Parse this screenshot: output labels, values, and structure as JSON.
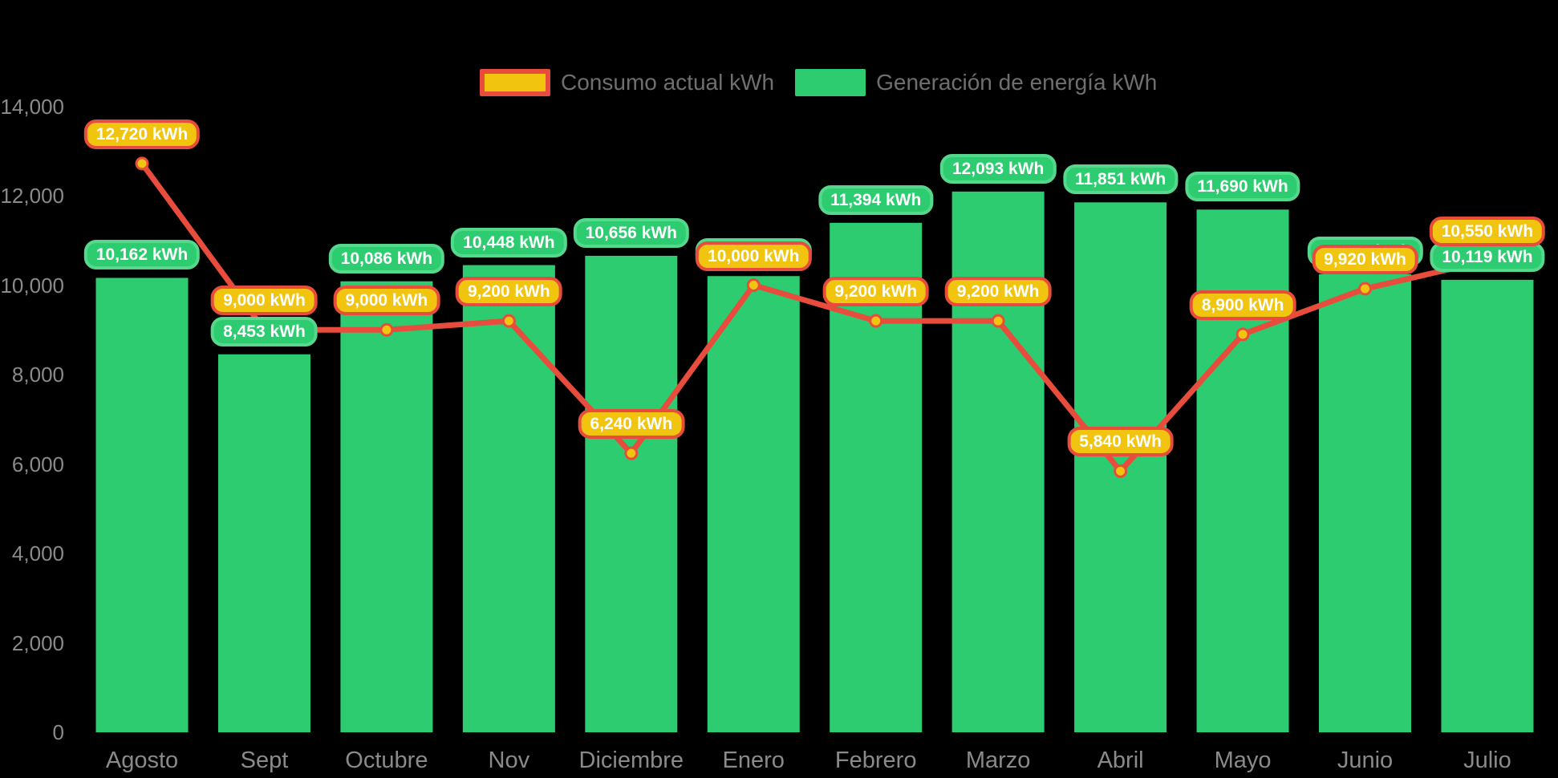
{
  "colors": {
    "background": "#000000",
    "bar_green": "#2ecc71",
    "green_pill_border": "#55d88c",
    "orange_pill_fill": "#f1c40f",
    "line_red": "#e74c3c",
    "point_fill": "#f1c40f",
    "axis_text": "#8a8a8a",
    "legend_text": "#6f6f6f",
    "pill_text": "#ffffff"
  },
  "legend": {
    "items": [
      {
        "label": "Consumo actual kWh"
      },
      {
        "label": "Generación de energía kWh"
      }
    ]
  },
  "chart_data": {
    "type": "bar+line combo",
    "categories": [
      "Agosto",
      "Sept",
      "Octubre",
      "Nov",
      "Diciembre",
      "Enero",
      "Febrero",
      "Marzo",
      "Abril",
      "Mayo",
      "Junio",
      "Julio"
    ],
    "series": [
      {
        "name": "Generación de energía kWh",
        "type": "bar",
        "color": "#2ecc71",
        "values": [
          10162,
          8453,
          10086,
          10448,
          10656,
          10202,
          11394,
          12093,
          11851,
          11690,
          10242,
          10119
        ],
        "labels": [
          "10,162 kWh",
          "8,453 kWh",
          "10,086 kWh",
          "10,448 kWh",
          "10,656 kWh",
          "10,202 kWh",
          "11,394 kWh",
          "12,093 kWh",
          "11,851 kWh",
          "11,690 kWh",
          "10,242 kWh",
          "10,119 kWh"
        ]
      },
      {
        "name": "Consumo actual kWh",
        "type": "line",
        "color": "#e74c3c",
        "point_color": "#f1c40f",
        "values": [
          12720,
          9000,
          9000,
          9200,
          6240,
          10000,
          9200,
          9200,
          5840,
          8900,
          9920,
          10550
        ],
        "labels": [
          "12,720 kWh",
          "9,000 kWh",
          "9,000 kWh",
          "9,200 kWh",
          "6,240 kWh",
          "10,000 kWh",
          "9,200 kWh",
          "9,200 kWh",
          "5,840 kWh",
          "8,900 kWh",
          "9,920 kWh",
          "10,550 kWh"
        ]
      }
    ],
    "ylim": [
      0,
      14000
    ],
    "ytick_values": [
      0,
      2000,
      4000,
      6000,
      8000,
      10000,
      12000,
      14000
    ],
    "ytick_labels": [
      "0",
      "2,000",
      "4,000",
      "6,000",
      "8,000",
      "10,000",
      "12,000",
      "14,000"
    ],
    "grid": false,
    "legend_position": "top-center",
    "value_labels_shown": true
  }
}
